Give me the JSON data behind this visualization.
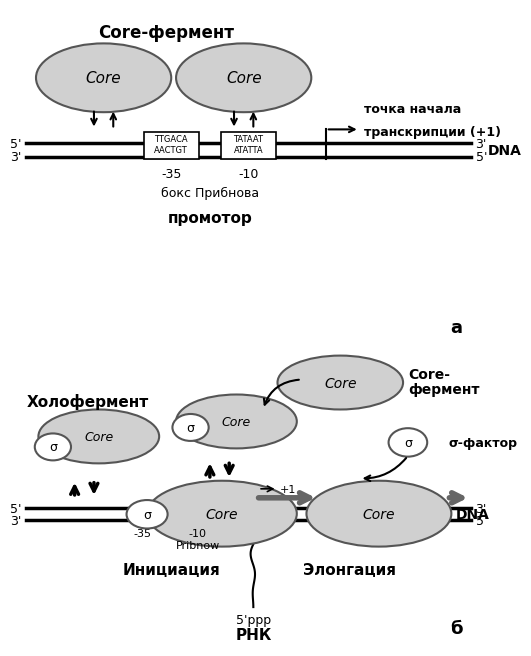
{
  "bg_color": "#ffffff",
  "ellipse_color": "#d0d0d0",
  "ellipse_edge": "#555555",
  "panel_a": {
    "title": "Core-фермент",
    "pribnow_label": "бокс Прибнова",
    "promoter_label": "промотор",
    "start_label_1": "точка начала",
    "start_label_2": "транскрипции (+1)",
    "panel_label": "а",
    "box1_text_top": "TTGACA",
    "box1_text_bot": "AACTGT",
    "box2_text_top": "TATAAT",
    "box2_text_bot": "ATATTA"
  },
  "panel_b": {
    "holoenzyme_label": "Холофермент",
    "core_enzyme_label_1": "Core-",
    "core_enzyme_label_2": "фермент",
    "sigma_factor_label": "σ-фактор",
    "initiation_label": "Инициация",
    "elongation_label": "Элонгация",
    "rna_label_1": "5'ppp",
    "rna_label_2": "РНК",
    "pribnow_label": "Pribnow",
    "panel_label": "б"
  }
}
